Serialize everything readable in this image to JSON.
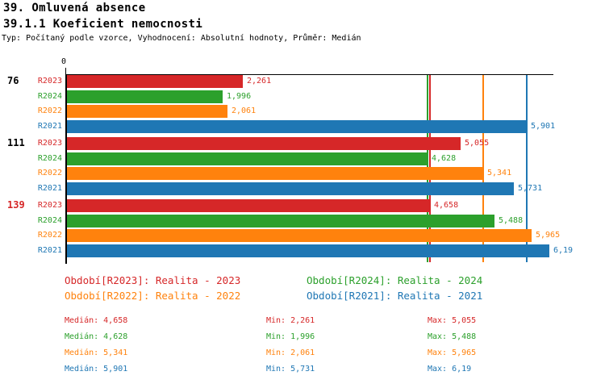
{
  "header": {
    "title": "39. Omluvená absence",
    "subtitle": "39.1.1 Koeficient nemocnosti",
    "meta": "Typ: Počítaný podle vzorce, Vyhodnocení: Absolutní hodnoty, Průměr: Medián"
  },
  "chart_data": {
    "type": "bar",
    "orientation": "horizontal",
    "title": "39.1.1 Koeficient nemocnosti",
    "x_axis": {
      "origin_label": "0",
      "max": 6.25,
      "gridlines": "median reference lines per series"
    },
    "series": [
      {
        "key": "R2023",
        "name": "Realita - 2023",
        "color": "#d62728"
      },
      {
        "key": "R2024",
        "name": "Realita - 2024",
        "color": "#2ca02c"
      },
      {
        "key": "R2022",
        "name": "Realita - 2022",
        "color": "#ff820d"
      },
      {
        "key": "R2021",
        "name": "Realita - 2021",
        "color": "#1f77b4"
      }
    ],
    "groups": [
      {
        "label": "76",
        "label_color": "#000000",
        "bars": [
          {
            "series": "R2023",
            "value": 2.261,
            "display": "2,261"
          },
          {
            "series": "R2024",
            "value": 1.996,
            "display": "1,996"
          },
          {
            "series": "R2022",
            "value": 2.061,
            "display": "2,061"
          },
          {
            "series": "R2021",
            "value": 5.901,
            "display": "5,901"
          }
        ]
      },
      {
        "label": "111",
        "label_color": "#000000",
        "bars": [
          {
            "series": "R2023",
            "value": 5.055,
            "display": "5,055"
          },
          {
            "series": "R2024",
            "value": 4.628,
            "display": "4,628"
          },
          {
            "series": "R2022",
            "value": 5.341,
            "display": "5,341"
          },
          {
            "series": "R2021",
            "value": 5.731,
            "display": "5,731"
          }
        ]
      },
      {
        "label": "139",
        "label_color": "#d62728",
        "bars": [
          {
            "series": "R2023",
            "value": 4.658,
            "display": "4,658"
          },
          {
            "series": "R2024",
            "value": 5.488,
            "display": "5,488"
          },
          {
            "series": "R2022",
            "value": 5.965,
            "display": "5,965"
          },
          {
            "series": "R2021",
            "value": 6.19,
            "display": "6,19"
          }
        ]
      }
    ],
    "median_lines": [
      {
        "series": "R2023",
        "value": 4.658,
        "color": "#d62728"
      },
      {
        "series": "R2024",
        "value": 4.628,
        "color": "#2ca02c"
      },
      {
        "series": "R2022",
        "value": 5.341,
        "color": "#ff820d"
      },
      {
        "series": "R2021",
        "value": 5.901,
        "color": "#1f77b4"
      }
    ]
  },
  "legend": {
    "items": [
      {
        "text": "Období[R2023]: Realita - 2023",
        "color": "#d62728"
      },
      {
        "text": "Období[R2024]: Realita - 2024",
        "color": "#2ca02c"
      },
      {
        "text": "Období[R2022]: Realita - 2022",
        "color": "#ff820d"
      },
      {
        "text": "Období[R2021]: Realita - 2021",
        "color": "#1f77b4"
      }
    ]
  },
  "stats": {
    "rows": [
      {
        "color": "#d62728",
        "median": "Medián: 4,658",
        "min": "Min: 2,261",
        "max": "Max: 5,055"
      },
      {
        "color": "#2ca02c",
        "median": "Medián: 4,628",
        "min": "Min: 1,996",
        "max": "Max: 5,488"
      },
      {
        "color": "#ff820d",
        "median": "Medián: 5,341",
        "min": "Min: 2,061",
        "max": "Max: 5,965"
      },
      {
        "color": "#1f77b4",
        "median": "Medián: 5,901",
        "min": "Min: 5,731",
        "max": "Max: 6,19"
      }
    ]
  }
}
